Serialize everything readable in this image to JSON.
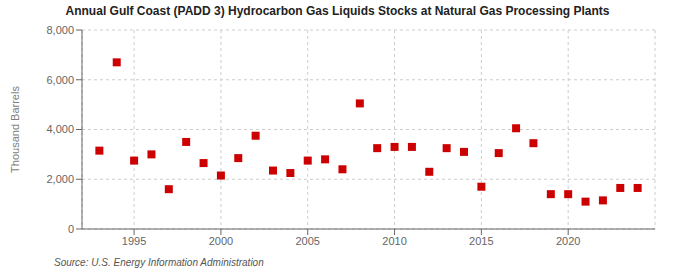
{
  "chart_data": {
    "type": "scatter",
    "title": "Annual Gulf Coast (PADD 3) Hydrocarbon Gas Liquids Stocks at Natural Gas Processing Plants",
    "y_label": "Thousand Barrels",
    "annotation": "Source: U.S. Energy Information Administration",
    "x": [
      1993,
      1994,
      1995,
      1996,
      1997,
      1998,
      1999,
      2000,
      2001,
      2002,
      2003,
      2004,
      2005,
      2006,
      2007,
      2008,
      2009,
      2010,
      2011,
      2012,
      2013,
      2014,
      2015,
      2016,
      2017,
      2018,
      2019,
      2020,
      2021,
      2022,
      2023,
      2024
    ],
    "values": [
      3150,
      6700,
      2750,
      3000,
      1600,
      3500,
      2650,
      2150,
      2850,
      3750,
      2350,
      2250,
      2750,
      2800,
      2400,
      5050,
      3250,
      3300,
      3300,
      2300,
      3250,
      3100,
      1700,
      3050,
      4050,
      3450,
      1400,
      1400,
      1100,
      1150,
      1650,
      1650
    ],
    "color": "#cc0000",
    "marker": "square",
    "xlim": [
      1992,
      2025
    ],
    "ylim": [
      0,
      8000
    ],
    "xticks": [
      1995,
      2000,
      2005,
      2010,
      2015,
      2020
    ],
    "yticks": [
      0,
      {
        "value": 2000,
        "label": "2,000"
      },
      {
        "value": 4000,
        "label": "4,000"
      },
      {
        "value": 6000,
        "label": "6,000"
      },
      {
        "value": 8000,
        "label": "8,000"
      }
    ],
    "grid": true
  }
}
